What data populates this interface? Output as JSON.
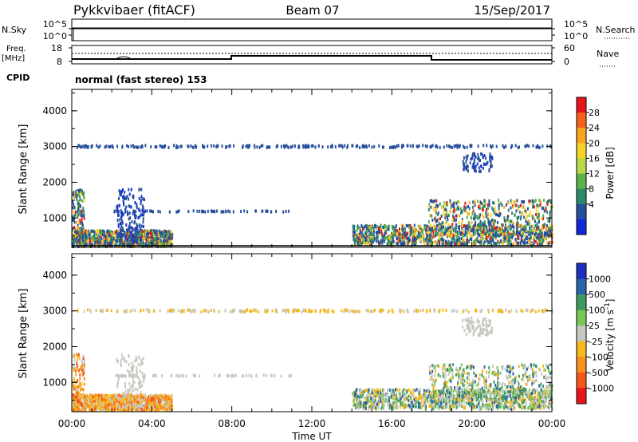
{
  "header": {
    "station": "Pykkvibaer (fitACF)",
    "beam": "Beam 07",
    "date": "15/Sep/2017"
  },
  "aux_panels": {
    "nsky_label": "N.Sky",
    "nsky_ticks": [
      "10^5",
      "10^0"
    ],
    "nsearch_label": "N.Search",
    "nsearch_ticks": [
      "10^5",
      "10^0"
    ],
    "freq_label": "Freq.",
    "freq_unit": "[MHz]",
    "freq_ticks": [
      "18",
      "8"
    ],
    "nave_label": "Nave",
    "nave_ticks": [
      "60",
      "0"
    ],
    "cpid_label": "CPID",
    "cpid_text": "normal (fast stereo) 153"
  },
  "chart_data": [
    {
      "type": "heatmap",
      "name": "power",
      "ylabel": "Slant Range [km]",
      "yticks": [
        "4000",
        "3000",
        "2000",
        "1000"
      ],
      "ylim": [
        180,
        4600
      ],
      "xlim_hours": [
        0,
        24
      ],
      "colorbar": {
        "label": "Power [dB]",
        "ticks": [
          "28",
          "24",
          "20",
          "16",
          "12",
          "8",
          "4"
        ],
        "colors": [
          "#e8141c",
          "#f5621e",
          "#f9a51f",
          "#f5d42a",
          "#b9d84a",
          "#5db24a",
          "#2f8a6a",
          "#26509c",
          "#1428d8"
        ]
      }
    },
    {
      "type": "heatmap",
      "name": "velocity",
      "ylabel": "Slant Range [km]",
      "yticks": [
        "4000",
        "3000",
        "2000",
        "1000"
      ],
      "ylim": [
        180,
        4600
      ],
      "xlim_hours": [
        0,
        24
      ],
      "colorbar": {
        "label": "Velocity [m s",
        "label_sup": "-1",
        "label_end": "]",
        "ticks": [
          "1000",
          "500",
          "100",
          "25",
          "-25",
          "-100",
          "-500",
          "-1000"
        ],
        "colors": [
          "#1c2fbc",
          "#2a64a8",
          "#3f9a62",
          "#79c85a",
          "#c8c8c0",
          "#f5b81e",
          "#f7901c",
          "#f5561c",
          "#e8141c"
        ]
      }
    }
  ],
  "xaxis": {
    "label": "Time UT",
    "ticks": [
      "00:00",
      "04:00",
      "08:00",
      "12:00",
      "16:00",
      "20:00",
      "00:00"
    ]
  }
}
